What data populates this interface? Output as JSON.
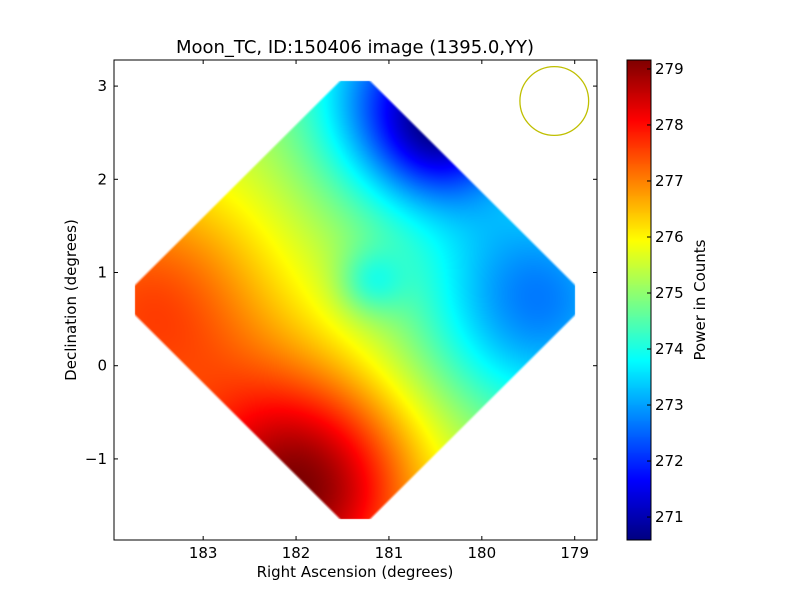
{
  "chart_data": {
    "type": "heatmap",
    "title": "Moon_TC, ID:150406 image (1395.0,YY)",
    "xlabel": "Right Ascension (degrees)",
    "ylabel": "Declination (degrees)",
    "xlim": [
      183.96,
      178.76
    ],
    "ylim": [
      -1.87,
      3.28
    ],
    "xticks": [
      183,
      182,
      181,
      180,
      179
    ],
    "xtick_labels": [
      "183",
      "182",
      "181",
      "180",
      "179"
    ],
    "yticks": [
      3,
      2,
      1,
      0,
      -1
    ],
    "ytick_labels": [
      "3",
      "2",
      "1",
      "0",
      "−1"
    ],
    "colorbar": {
      "label": "Power in Counts",
      "colormap": "jet",
      "range": [
        270.59,
        279.16
      ],
      "ticks": [
        279,
        278,
        277,
        276,
        275,
        274,
        273,
        272,
        271
      ],
      "tick_labels": [
        "279",
        "278",
        "277",
        "276",
        "275",
        "274",
        "273",
        "272",
        "271"
      ]
    },
    "field": {
      "center": [
        181.37,
        0.71
      ],
      "half_extent": [
        2.55,
        2.53
      ],
      "base": 275.3,
      "components": [
        {
          "ra": 180.7,
          "dec": 2.9,
          "amp": -3.2,
          "sigma": 0.8
        },
        {
          "ra": 180.4,
          "dec": 2.5,
          "amp": -1.8,
          "sigma": 0.5
        },
        {
          "ra": 181.96,
          "dec": -1.33,
          "amp": 3.8,
          "sigma": 0.9
        },
        {
          "ra": 183.6,
          "dec": 0.6,
          "amp": 2.2,
          "sigma": 1.0
        },
        {
          "ra": 179.4,
          "dec": 0.71,
          "amp": -2.6,
          "sigma": 0.9
        },
        {
          "ra": 181.2,
          "dec": 0.9,
          "amp": -1.0,
          "sigma": 0.25
        }
      ]
    },
    "beam_circle": {
      "ra": 179.22,
      "dec": 2.84,
      "radius_deg": 0.37,
      "color": "#bfbf00"
    }
  }
}
